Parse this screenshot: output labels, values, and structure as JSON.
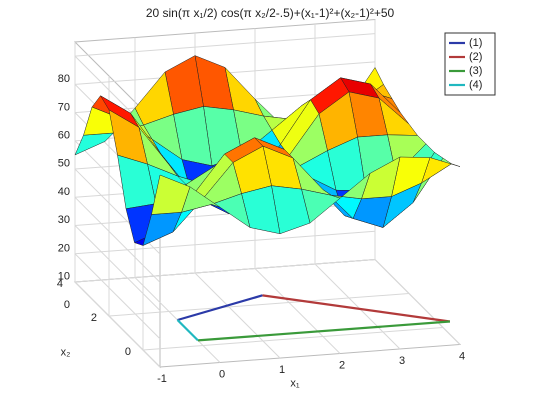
{
  "chart_data": {
    "type": "surface3d",
    "title": "20 sin(π x₁/2) cos(π x₂/2-.5)+(x₁-1)²+(x₂-1)²+50",
    "xlabel": "x₁",
    "ylabel": "x₂",
    "xlim": [
      -1,
      4
    ],
    "ylim": [
      -1,
      4
    ],
    "zlim": [
      0,
      85
    ],
    "xticks": [
      -1,
      0,
      1,
      2,
      3,
      4
    ],
    "yticks": [
      0,
      2,
      4
    ],
    "zticks": [
      0,
      10,
      20,
      30,
      40,
      50,
      60,
      70,
      80
    ],
    "grid": true,
    "legend": "northeast",
    "surface": {
      "x": [
        -1,
        -0.5,
        0,
        0.5,
        1,
        1.5,
        2,
        2.5,
        3,
        3.5,
        4
      ],
      "y": [
        -1,
        -0.5,
        0,
        0.5,
        1,
        1.5,
        2,
        2.5,
        3,
        3.5,
        4
      ],
      "z": [
        [
          68,
          51,
          37,
          35,
          44,
          60,
          73,
          75,
          68,
          55,
          45
        ],
        [
          63,
          51,
          41,
          39,
          45,
          56,
          66,
          68,
          63,
          55,
          49
        ],
        [
          55,
          53,
          52,
          51,
          51,
          51,
          52,
          53,
          55,
          57,
          60
        ],
        [
          47,
          56,
          64,
          64,
          57,
          47,
          39,
          39,
          47,
          60,
          72
        ],
        [
          44,
          58,
          69,
          69,
          60,
          45,
          33,
          33,
          44,
          62,
          77
        ],
        [
          47,
          56,
          64,
          64,
          57,
          47,
          39,
          39,
          47,
          60,
          72
        ],
        [
          55,
          53,
          52,
          51,
          51,
          51,
          52,
          53,
          55,
          57,
          60
        ],
        [
          63,
          51,
          41,
          39,
          45,
          56,
          66,
          68,
          63,
          55,
          49
        ],
        [
          68,
          51,
          37,
          35,
          44,
          60,
          73,
          75,
          68,
          55,
          45
        ],
        [
          67,
          55,
          45,
          43,
          49,
          60,
          70,
          72,
          67,
          58,
          53
        ],
        [
          63,
          61,
          60,
          59,
          59,
          59,
          60,
          61,
          63,
          65,
          68
        ]
      ]
    },
    "series": [
      {
        "name": "(1)",
        "color": "#2b3aa8",
        "x": [
          0,
          1.7
        ],
        "y": [
          1.5,
          2.5
        ]
      },
      {
        "name": "(2)",
        "color": "#b23a3a",
        "x": [
          1.7,
          4.2
        ],
        "y": [
          2.5,
          0.3
        ]
      },
      {
        "name": "(3)",
        "color": "#3a9a3a",
        "x": [
          0,
          4.2
        ],
        "y": [
          0.3,
          0.3
        ]
      },
      {
        "name": "(4)",
        "color": "#20b8c0",
        "x": [
          0,
          0
        ],
        "y": [
          1.5,
          0.3
        ]
      }
    ]
  }
}
